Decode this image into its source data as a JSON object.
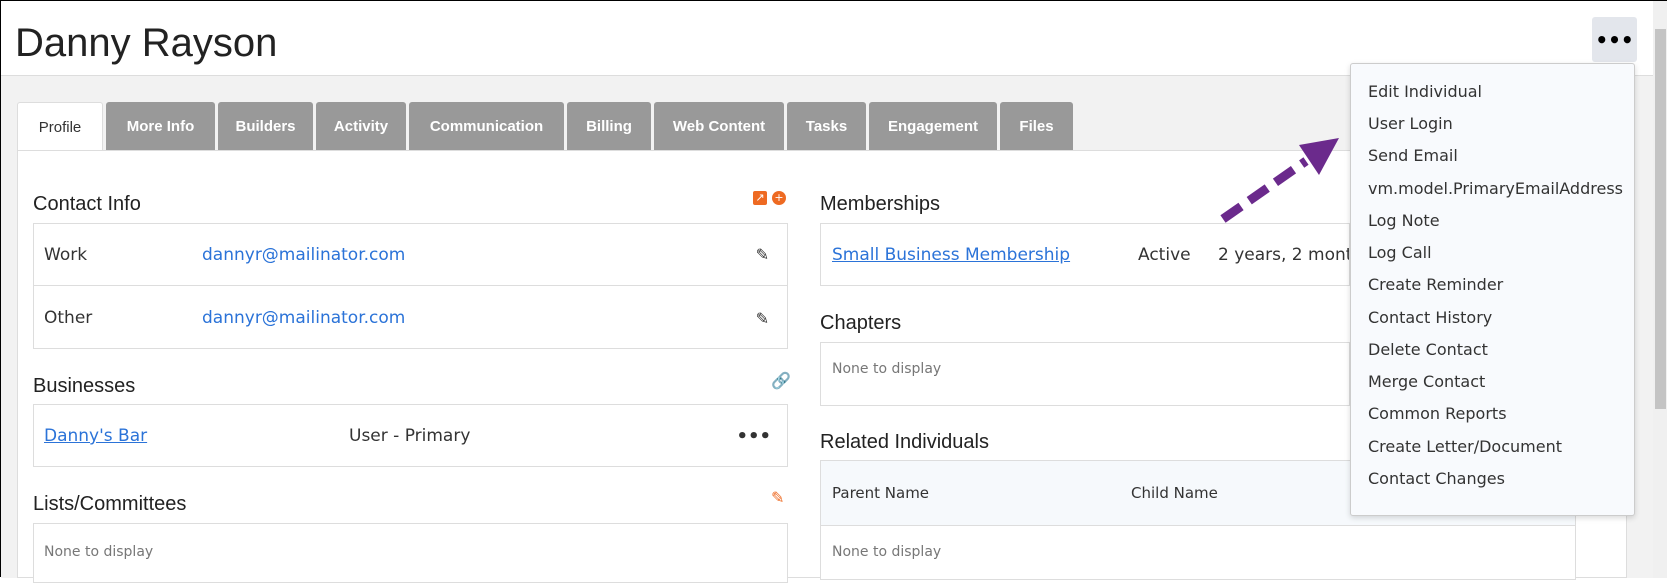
{
  "header": {
    "title": "Danny Rayson"
  },
  "tabs": [
    "Profile",
    "More Info",
    "Builders",
    "Activity",
    "Communication",
    "Billing",
    "Web Content",
    "Tasks",
    "Engagement",
    "Files"
  ],
  "contact_info": {
    "title": "Contact Info",
    "rows": [
      {
        "label": "Work",
        "email": "dannyr@mailinator.com"
      },
      {
        "label": "Other",
        "email": "dannyr@mailinator.com"
      }
    ]
  },
  "businesses": {
    "title": "Businesses",
    "rows": [
      {
        "name": "Danny's Bar",
        "role": "User - Primary"
      }
    ]
  },
  "lists": {
    "title": "Lists/Committees",
    "empty": "None to display"
  },
  "memberships": {
    "title": "Memberships",
    "rows": [
      {
        "name": "Small Business Membership",
        "status": "Active",
        "duration": "2 years, 2 mont"
      }
    ]
  },
  "chapters": {
    "title": "Chapters",
    "empty": "None to display"
  },
  "related": {
    "title": "Related Individuals",
    "columns": [
      "Parent Name",
      "Child Name"
    ],
    "empty": "None to display"
  },
  "menu": {
    "items": [
      "Edit Individual",
      "User Login",
      "Send Email",
      "vm.model.PrimaryEmailAddress",
      "Log Note",
      "Log Call",
      "Create Reminder",
      "Contact History",
      "Delete Contact",
      "Merge Contact",
      "Common Reports",
      "Create Letter/Document",
      "Contact Changes"
    ]
  },
  "colors": {
    "accent": "#ee6a22",
    "link": "#2b73d8",
    "tab": "#999999",
    "arrow": "#6b2a8c"
  }
}
